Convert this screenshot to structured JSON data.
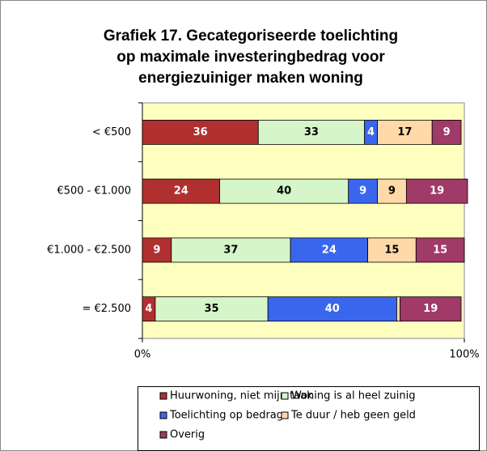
{
  "chart_data": {
    "type": "stacked_barh",
    "title": [
      "Grafiek 17. Gecategoriseerde toelichting",
      "op maximale investeringbedrag voor",
      "energiezuiniger maken woning"
    ],
    "categories": [
      "< €500",
      "€500 - €1.000",
      "€1.000 - €2.500",
      "= €2.500"
    ],
    "series": [
      {
        "name": "Huurwoning, niet mijn taak",
        "color": "#b03030",
        "values": [
          36,
          24,
          9,
          4
        ]
      },
      {
        "name": "Woning is al heel zuinig",
        "color": "#d6f5c8",
        "values": [
          33,
          40,
          37,
          35
        ]
      },
      {
        "name": "Toelichting op bedrag",
        "color": "#3a66ee",
        "values": [
          4,
          9,
          24,
          40
        ]
      },
      {
        "name": "Te duur / heb geen geld",
        "color": "#ffd9a8",
        "values": [
          17,
          9,
          15,
          1
        ]
      },
      {
        "name": "Overig",
        "color": "#a03a68",
        "values": [
          9,
          19,
          15,
          19
        ]
      }
    ],
    "xlim": [
      0,
      100
    ],
    "xticks": [
      {
        "value": 0,
        "label": "0%"
      },
      {
        "value": 100,
        "label": "100%"
      }
    ],
    "legend": "bottom"
  }
}
